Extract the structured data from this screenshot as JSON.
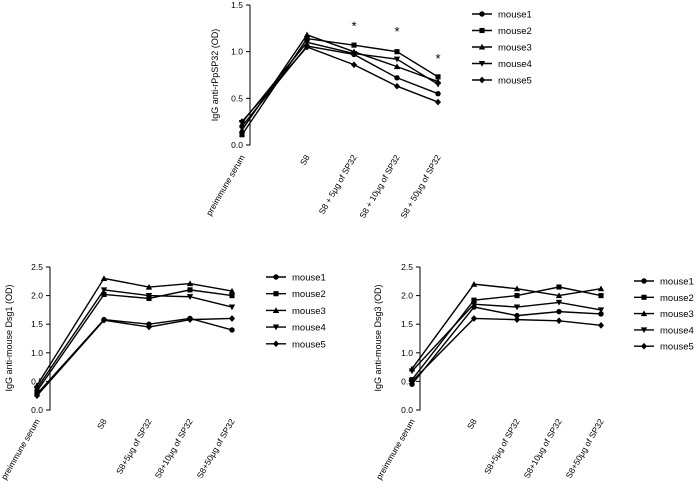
{
  "chart_data": [
    {
      "type": "line",
      "ylabel": "IgG anti-rPpSP32 (OD)",
      "categories": [
        "preimmune serum",
        "S8",
        "S8 + 5μg of SP32",
        "S8 + 10μg of SP32",
        "S8 + 50μg of SP32"
      ],
      "ylim": [
        0,
        1.5
      ],
      "yticks": [
        "0.0",
        "0.5",
        "1.0",
        "1.5"
      ],
      "series": [
        {
          "name": "mouse1",
          "marker": "circle",
          "values": [
            0.2,
            1.06,
            0.97,
            0.72,
            0.55
          ]
        },
        {
          "name": "mouse2",
          "marker": "square",
          "values": [
            0.11,
            1.14,
            1.07,
            1.0,
            0.73
          ]
        },
        {
          "name": "mouse3",
          "marker": "triangle-up",
          "values": [
            0.16,
            1.18,
            1.0,
            0.84,
            0.68
          ]
        },
        {
          "name": "mouse4",
          "marker": "triangle-down",
          "values": [
            0.24,
            1.1,
            0.98,
            0.92,
            0.65
          ]
        },
        {
          "name": "mouse5",
          "marker": "diamond",
          "values": [
            0.25,
            1.05,
            0.86,
            0.63,
            0.46
          ]
        }
      ],
      "annotations": [
        {
          "text": "*",
          "category": "S8 + 5μg of SP32",
          "y": 1.28
        },
        {
          "text": "*",
          "category": "S8 + 10μg of SP32",
          "y": 1.22
        },
        {
          "text": "*",
          "category": "S8 + 50μg of SP32",
          "y": 0.93
        }
      ],
      "legend": "right"
    },
    {
      "type": "line",
      "ylabel": "IgG anti-mouse Dsg1 (OD)",
      "categories": [
        "preimmune serum",
        "S8",
        "S8+5μg of SP32",
        "S8+10μg of SP32",
        "S8+50μg of SP32"
      ],
      "ylim": [
        0,
        2.5
      ],
      "yticks": [
        "0.0",
        "0.5",
        "1.0",
        "1.5",
        "2.0",
        "2.5"
      ],
      "series": [
        {
          "name": "mouse1",
          "marker": "circle",
          "values": [
            0.28,
            1.58,
            1.5,
            1.6,
            1.4
          ]
        },
        {
          "name": "mouse2",
          "marker": "square",
          "values": [
            0.33,
            2.02,
            1.95,
            2.1,
            2.0
          ]
        },
        {
          "name": "mouse3",
          "marker": "triangle-up",
          "values": [
            0.43,
            2.3,
            2.15,
            2.21,
            2.08
          ]
        },
        {
          "name": "mouse4",
          "marker": "triangle-down",
          "values": [
            0.38,
            2.1,
            2.0,
            1.98,
            1.8
          ]
        },
        {
          "name": "mouse5",
          "marker": "diamond",
          "values": [
            0.25,
            1.57,
            1.45,
            1.58,
            1.6
          ]
        }
      ],
      "legend": "right"
    },
    {
      "type": "line",
      "ylabel": "IgG anti-mouse Dsg3 (OD)",
      "categories": [
        "preimmune serum",
        "S8",
        "S8+5μg of SP32",
        "S8+10μg of SP32",
        "S8+50μg of SP32"
      ],
      "ylim": [
        0,
        2.5
      ],
      "yticks": [
        "0.0",
        "0.5",
        "1.0",
        "1.5",
        "2.0",
        "2.5"
      ],
      "series": [
        {
          "name": "mouse1",
          "marker": "circle",
          "values": [
            0.45,
            1.8,
            1.65,
            1.72,
            1.68
          ]
        },
        {
          "name": "mouse2",
          "marker": "square",
          "values": [
            0.53,
            1.92,
            2.0,
            2.15,
            2.0
          ]
        },
        {
          "name": "mouse3",
          "marker": "triangle-up",
          "values": [
            0.72,
            2.2,
            2.12,
            2.0,
            2.12
          ]
        },
        {
          "name": "mouse4",
          "marker": "triangle-down",
          "values": [
            0.68,
            1.85,
            1.8,
            1.88,
            1.75
          ]
        },
        {
          "name": "mouse5",
          "marker": "diamond",
          "values": [
            0.5,
            1.6,
            1.58,
            1.56,
            1.48
          ]
        }
      ],
      "legend": "right"
    }
  ]
}
